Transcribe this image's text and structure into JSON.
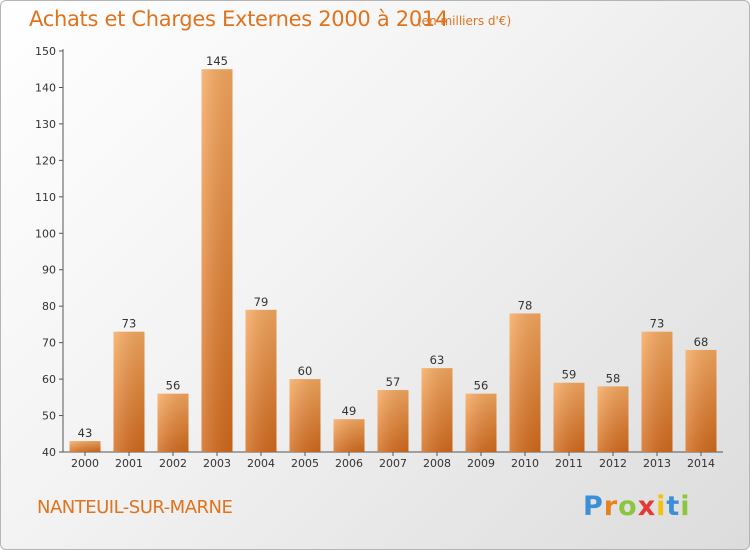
{
  "header": {
    "title": "Achats et Charges Externes 2000 à 2014",
    "unit": "(en milliers d'€)"
  },
  "footer": {
    "commune": "NANTEUIL-SUR-MARNE",
    "logo_letters": [
      "P",
      "r",
      "o",
      "x",
      "i",
      "t",
      "i"
    ],
    "logo_colors": [
      "#3c8fd6",
      "#e8821f",
      "#8cc63f",
      "#e53935",
      "#f4c20d",
      "#3c8fd6",
      "#8cc63f"
    ]
  },
  "colors": {
    "accent": "#e0731e",
    "bar_light": "#f6a35a",
    "bar_dark": "#d8691b"
  },
  "chart_data": {
    "type": "bar",
    "title": "Achats et Charges Externes 2000 à 2014",
    "subtitle": "(en milliers d'€)",
    "categories": [
      "2000",
      "2001",
      "2002",
      "2003",
      "2004",
      "2005",
      "2006",
      "2007",
      "2008",
      "2009",
      "2010",
      "2011",
      "2012",
      "2013",
      "2014"
    ],
    "values": [
      43,
      73,
      56,
      145,
      79,
      60,
      49,
      57,
      63,
      56,
      78,
      59,
      58,
      73,
      68
    ],
    "ylim": [
      40,
      150
    ],
    "yticks": [
      40,
      50,
      60,
      70,
      80,
      90,
      100,
      110,
      120,
      130,
      140,
      150
    ],
    "grid": false,
    "legend": "none"
  }
}
